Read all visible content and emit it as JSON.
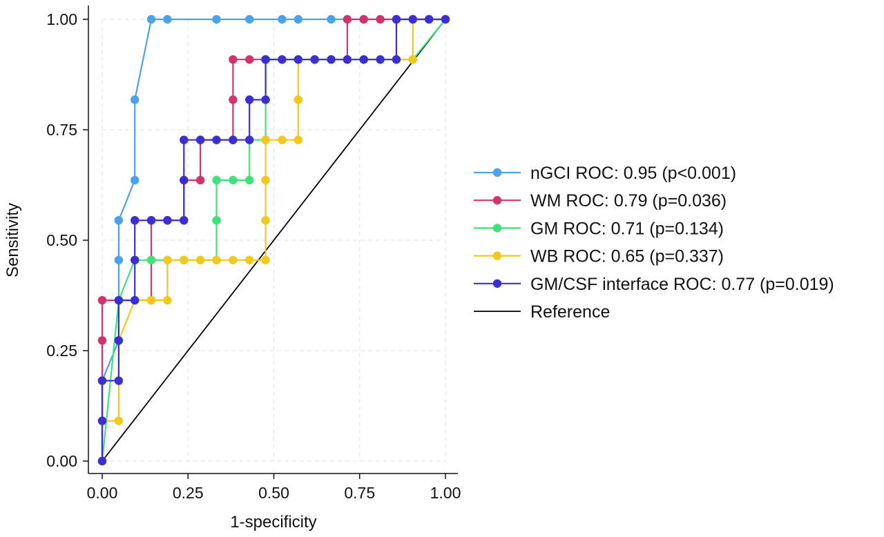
{
  "chart_data": {
    "type": "line",
    "title": "",
    "xlabel": "1-specificity",
    "ylabel": "Sensitivity",
    "xlim": [
      0,
      1
    ],
    "ylim": [
      0,
      1
    ],
    "x_ticks": [
      "0.00",
      "0.25",
      "0.50",
      "0.75",
      "1.00"
    ],
    "y_ticks": [
      "0.00",
      "0.25",
      "0.50",
      "0.75",
      "1.00"
    ],
    "grid": true,
    "legend_position": "right",
    "series": [
      {
        "name": "nGCI ROC: 0.95 (p<0.001)",
        "color": "#4aa3e8",
        "marker": true,
        "x": [
          0,
          0,
          0.048,
          0.048,
          0.048,
          0.095,
          0.095,
          0.143,
          0.19,
          0.333,
          0.429,
          0.524,
          0.571,
          0.667,
          0.762,
          0.857,
          0.952,
          1.0
        ],
        "y": [
          0,
          0.182,
          0.273,
          0.455,
          0.545,
          0.636,
          0.818,
          1.0,
          1.0,
          1.0,
          1.0,
          1.0,
          1.0,
          1.0,
          1.0,
          1.0,
          1.0,
          1.0
        ]
      },
      {
        "name": "WM ROC: 0.79 (p=0.036)",
        "color": "#d1336f",
        "marker": true,
        "x": [
          0,
          0,
          0,
          0,
          0.048,
          0.095,
          0.143,
          0.143,
          0.143,
          0.19,
          0.238,
          0.238,
          0.286,
          0.286,
          0.381,
          0.381,
          0.381,
          0.429,
          0.476,
          0.524,
          0.571,
          0.619,
          0.667,
          0.714,
          0.714,
          0.762,
          0.81,
          0.857,
          0.905,
          0.952,
          1.0
        ],
        "y": [
          0,
          0.182,
          0.273,
          0.364,
          0.364,
          0.364,
          0.364,
          0.455,
          0.545,
          0.545,
          0.545,
          0.636,
          0.636,
          0.727,
          0.727,
          0.818,
          0.909,
          0.909,
          0.909,
          0.909,
          0.909,
          0.909,
          0.909,
          0.909,
          1.0,
          1.0,
          1.0,
          1.0,
          1.0,
          1.0,
          1.0
        ]
      },
      {
        "name": "GM ROC: 0.71 (p=0.134)",
        "color": "#3fe27a",
        "marker": true,
        "x": [
          0,
          0.048,
          0.095,
          0.143,
          0.19,
          0.238,
          0.286,
          0.333,
          0.333,
          0.333,
          0.381,
          0.429,
          0.429,
          0.476,
          0.476,
          0.571,
          0.667,
          0.762,
          0.857,
          0.905,
          1.0
        ],
        "y": [
          0,
          0.364,
          0.455,
          0.455,
          0.455,
          0.455,
          0.455,
          0.455,
          0.545,
          0.636,
          0.636,
          0.636,
          0.727,
          0.727,
          0.909,
          0.909,
          0.909,
          0.909,
          0.909,
          0.909,
          1.0
        ]
      },
      {
        "name": "WB ROC: 0.65 (p=0.337)",
        "color": "#f2c81c",
        "marker": true,
        "x": [
          0,
          0,
          0.048,
          0.048,
          0.095,
          0.143,
          0.19,
          0.19,
          0.238,
          0.286,
          0.333,
          0.381,
          0.429,
          0.476,
          0.476,
          0.476,
          0.476,
          0.476,
          0.524,
          0.571,
          0.571,
          0.571,
          0.905,
          0.905,
          1.0
        ],
        "y": [
          0,
          0.091,
          0.091,
          0.273,
          0.364,
          0.364,
          0.364,
          0.455,
          0.455,
          0.455,
          0.455,
          0.455,
          0.455,
          0.455,
          0.545,
          0.636,
          0.727,
          0.727,
          0.727,
          0.727,
          0.818,
          0.909,
          0.909,
          1.0,
          1.0
        ]
      },
      {
        "name": "GM/CSF interface ROC: 0.77 (p=0.019)",
        "color": "#3a2fd0",
        "marker": true,
        "x": [
          0,
          0,
          0,
          0.048,
          0.048,
          0.048,
          0.095,
          0.095,
          0.095,
          0.143,
          0.19,
          0.238,
          0.238,
          0.238,
          0.286,
          0.333,
          0.381,
          0.429,
          0.429,
          0.476,
          0.476,
          0.476,
          0.524,
          0.571,
          0.619,
          0.667,
          0.714,
          0.762,
          0.81,
          0.857,
          0.857,
          0.905,
          0.952,
          1.0
        ],
        "y": [
          0,
          0.091,
          0.182,
          0.182,
          0.273,
          0.364,
          0.364,
          0.455,
          0.545,
          0.545,
          0.545,
          0.545,
          0.636,
          0.727,
          0.727,
          0.727,
          0.727,
          0.727,
          0.818,
          0.818,
          0.909,
          0.909,
          0.909,
          0.909,
          0.909,
          0.909,
          0.909,
          0.909,
          0.909,
          0.909,
          1.0,
          1.0,
          1.0,
          1.0
        ]
      },
      {
        "name": "Reference",
        "color": "#000000",
        "marker": false,
        "x": [
          0,
          1
        ],
        "y": [
          0,
          1
        ]
      }
    ]
  }
}
